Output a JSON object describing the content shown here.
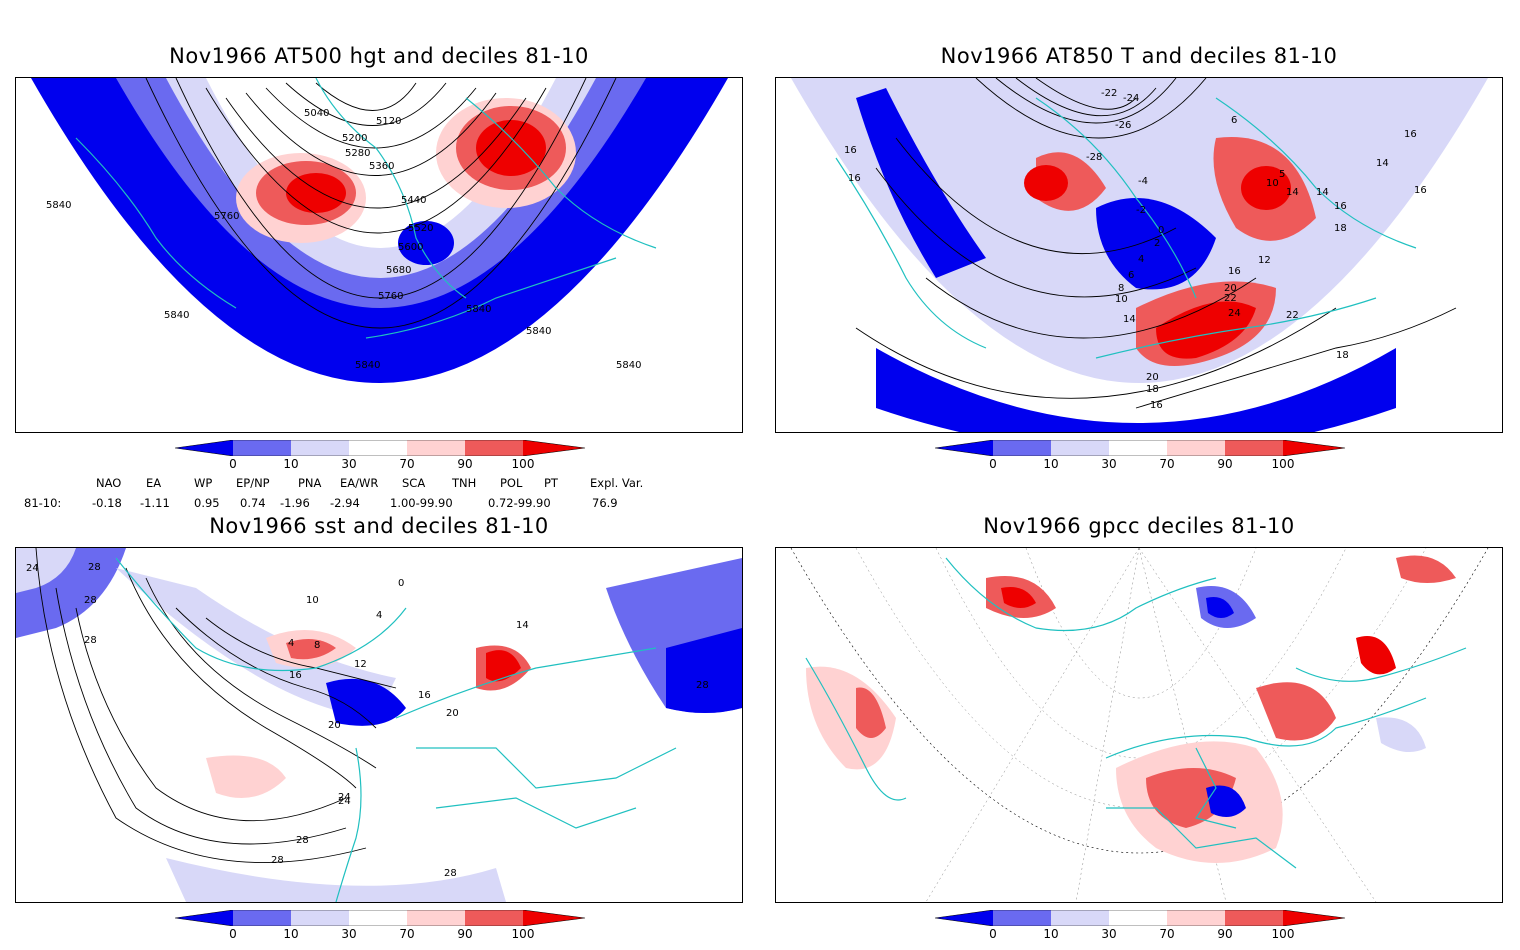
{
  "panels": [
    {
      "title": "Nov1966 AT500 hgt and deciles 81-10",
      "contour_labels": [
        "5040",
        "5120",
        "5200",
        "5280",
        "5360",
        "5440",
        "5520",
        "5600",
        "5680",
        "5760",
        "5760",
        "5840",
        "5840",
        "5840",
        "5840",
        "5840",
        "5840"
      ]
    },
    {
      "title": "Nov1966 AT850 T and deciles 81-10",
      "contour_labels": [
        "-22",
        "-24",
        "-26",
        "-28",
        "-4",
        "-2",
        "0",
        "2",
        "4",
        "6",
        "8",
        "10",
        "14",
        "16",
        "16",
        "16",
        "14",
        "14",
        "16",
        "18",
        "12",
        "16",
        "20",
        "22",
        "24",
        "22",
        "20",
        "18",
        "16",
        "18",
        "5",
        "10",
        "6",
        "14",
        "16"
      ]
    },
    {
      "title": "Nov1966 sst and deciles 81-10",
      "contour_labels": [
        "24",
        "28",
        "28",
        "28",
        "24",
        "28",
        "28",
        "28",
        "0",
        "4",
        "8",
        "12",
        "16",
        "20",
        "16",
        "20",
        "24",
        "4",
        "10",
        "14",
        "28"
      ]
    },
    {
      "title": "Nov1966 gpcc deciles 81-10",
      "contour_labels": []
    }
  ],
  "colorbar": {
    "tick_labels": [
      "0",
      "10",
      "30",
      "70",
      "90",
      "100"
    ],
    "colors": [
      "#0000ee",
      "#6a6af0",
      "#d8d8f8",
      "#ffffff",
      "#ffd2d2",
      "#ee5a5a",
      "#ee0000"
    ]
  },
  "indices": {
    "row_label": "81-10:",
    "headers": [
      "NAO",
      "EA",
      "WP",
      "EP/NP",
      "PNA",
      "EA/WR",
      "SCA",
      "TNH",
      "POL",
      "PT",
      "Expl. Var."
    ],
    "values": [
      "-0.18",
      "-1.11",
      "0.95",
      "0.74",
      "-1.96",
      "-2.94",
      "1.00-99.90",
      "",
      "0.72-99.90",
      "",
      "76.9"
    ]
  },
  "colors": {
    "coastline": "#20c0c0",
    "deep_blue": "#0000ee",
    "mid_blue": "#6a6af0",
    "light_blue": "#d8d8f8",
    "light_red": "#ffd2d2",
    "mid_red": "#ee5a5a",
    "deep_red": "#ee0000"
  }
}
